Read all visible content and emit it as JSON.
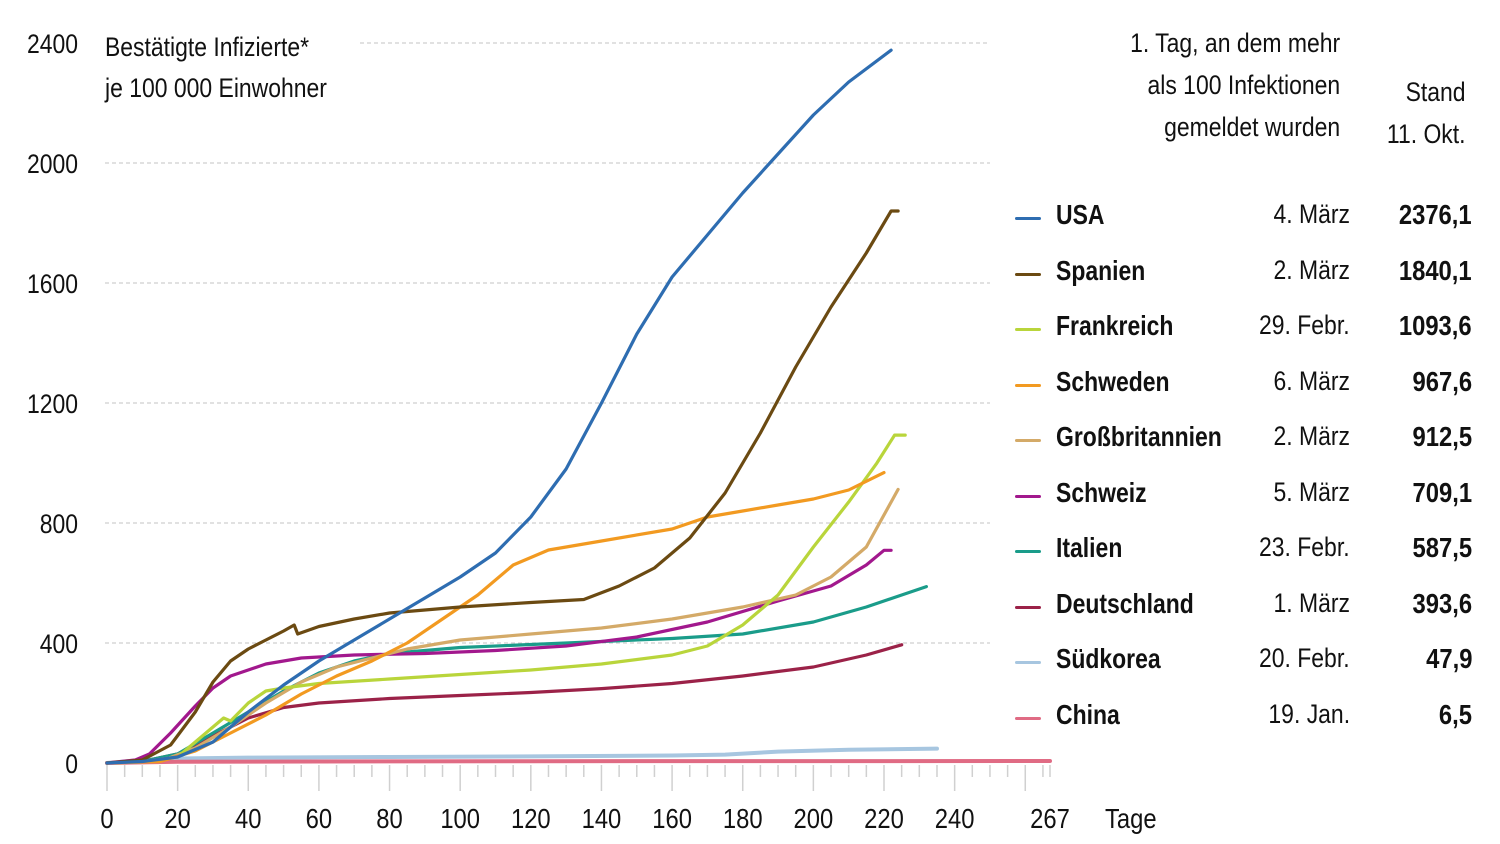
{
  "chart_data": {
    "type": "line",
    "title": "Bestätigte Infizierte* je 100 000 Einwohner",
    "title_lines": [
      "Bestätigte Infizierte*",
      "je 100 000 Einwohner"
    ],
    "xlabel": "Tage",
    "ylabel": "",
    "xlim": [
      0,
      267
    ],
    "ylim": [
      0,
      2400
    ],
    "x_ticks": [
      0,
      20,
      40,
      60,
      80,
      100,
      120,
      140,
      160,
      180,
      200,
      220,
      240,
      267
    ],
    "y_ticks": [
      0,
      400,
      800,
      1200,
      1600,
      2000,
      2400
    ],
    "grid": "horizontal dashed",
    "legend_header": {
      "first_day": [
        "1. Tag, an dem mehr",
        "als 100 Infektionen",
        "gemeldet wurden"
      ],
      "stand": [
        "Stand",
        "11. Okt."
      ]
    },
    "series": [
      {
        "name": "USA",
        "color": "#2e6db1",
        "first_day": "4. März",
        "stand": "2376,1",
        "points": [
          [
            0,
            0
          ],
          [
            10,
            5
          ],
          [
            20,
            20
          ],
          [
            30,
            70
          ],
          [
            40,
            170
          ],
          [
            50,
            260
          ],
          [
            60,
            340
          ],
          [
            70,
            410
          ],
          [
            80,
            480
          ],
          [
            90,
            550
          ],
          [
            100,
            620
          ],
          [
            110,
            700
          ],
          [
            120,
            820
          ],
          [
            130,
            980
          ],
          [
            140,
            1200
          ],
          [
            150,
            1430
          ],
          [
            160,
            1620
          ],
          [
            170,
            1760
          ],
          [
            180,
            1900
          ],
          [
            190,
            2030
          ],
          [
            200,
            2160
          ],
          [
            210,
            2270
          ],
          [
            222,
            2376
          ]
        ]
      },
      {
        "name": "Spanien",
        "color": "#6b4a12",
        "first_day": "2. März",
        "stand": "1840,1",
        "points": [
          [
            0,
            0
          ],
          [
            10,
            10
          ],
          [
            18,
            60
          ],
          [
            25,
            170
          ],
          [
            30,
            270
          ],
          [
            35,
            340
          ],
          [
            40,
            380
          ],
          [
            45,
            410
          ],
          [
            50,
            440
          ],
          [
            53,
            460
          ],
          [
            54,
            430
          ],
          [
            60,
            455
          ],
          [
            70,
            480
          ],
          [
            80,
            500
          ],
          [
            100,
            520
          ],
          [
            120,
            535
          ],
          [
            135,
            545
          ],
          [
            145,
            590
          ],
          [
            155,
            650
          ],
          [
            165,
            750
          ],
          [
            175,
            900
          ],
          [
            185,
            1100
          ],
          [
            195,
            1320
          ],
          [
            205,
            1520
          ],
          [
            215,
            1700
          ],
          [
            222,
            1840
          ],
          [
            224,
            1840
          ]
        ]
      },
      {
        "name": "Frankreich",
        "color": "#b9d53b",
        "first_day": "29. Febr.",
        "stand": "1093,6",
        "points": [
          [
            0,
            0
          ],
          [
            10,
            5
          ],
          [
            20,
            20
          ],
          [
            28,
            100
          ],
          [
            33,
            150
          ],
          [
            35,
            140
          ],
          [
            40,
            200
          ],
          [
            45,
            240
          ],
          [
            50,
            250
          ],
          [
            60,
            265
          ],
          [
            80,
            280
          ],
          [
            100,
            295
          ],
          [
            120,
            310
          ],
          [
            140,
            330
          ],
          [
            160,
            360
          ],
          [
            170,
            390
          ],
          [
            180,
            460
          ],
          [
            190,
            560
          ],
          [
            200,
            720
          ],
          [
            210,
            870
          ],
          [
            218,
            1000
          ],
          [
            223,
            1093
          ],
          [
            226,
            1093
          ]
        ]
      },
      {
        "name": "Schweden",
        "color": "#f29a21",
        "first_day": "6. März",
        "stand": "967,6",
        "points": [
          [
            0,
            0
          ],
          [
            15,
            5
          ],
          [
            25,
            40
          ],
          [
            35,
            100
          ],
          [
            45,
            160
          ],
          [
            55,
            230
          ],
          [
            65,
            290
          ],
          [
            75,
            340
          ],
          [
            85,
            400
          ],
          [
            95,
            480
          ],
          [
            105,
            560
          ],
          [
            115,
            660
          ],
          [
            125,
            710
          ],
          [
            140,
            740
          ],
          [
            160,
            780
          ],
          [
            170,
            820
          ],
          [
            180,
            840
          ],
          [
            190,
            860
          ],
          [
            200,
            880
          ],
          [
            210,
            910
          ],
          [
            220,
            968
          ]
        ]
      },
      {
        "name": "Großbritannien",
        "color": "#d4aa68",
        "first_day": "2. März",
        "stand": "912,5",
        "points": [
          [
            0,
            0
          ],
          [
            15,
            5
          ],
          [
            25,
            50
          ],
          [
            35,
            120
          ],
          [
            45,
            200
          ],
          [
            55,
            270
          ],
          [
            65,
            320
          ],
          [
            75,
            350
          ],
          [
            85,
            380
          ],
          [
            100,
            410
          ],
          [
            120,
            430
          ],
          [
            140,
            450
          ],
          [
            160,
            480
          ],
          [
            180,
            520
          ],
          [
            195,
            560
          ],
          [
            205,
            620
          ],
          [
            215,
            720
          ],
          [
            224,
            912
          ]
        ]
      },
      {
        "name": "Schweiz",
        "color": "#a2188d",
        "first_day": "5. März",
        "stand": "709,1",
        "points": [
          [
            0,
            0
          ],
          [
            8,
            10
          ],
          [
            12,
            30
          ],
          [
            18,
            100
          ],
          [
            25,
            190
          ],
          [
            30,
            250
          ],
          [
            35,
            290
          ],
          [
            45,
            330
          ],
          [
            55,
            350
          ],
          [
            70,
            360
          ],
          [
            90,
            365
          ],
          [
            110,
            375
          ],
          [
            130,
            390
          ],
          [
            150,
            420
          ],
          [
            170,
            470
          ],
          [
            190,
            540
          ],
          [
            205,
            590
          ],
          [
            215,
            660
          ],
          [
            220,
            709
          ],
          [
            222,
            709
          ]
        ]
      },
      {
        "name": "Italien",
        "color": "#1a9c8a",
        "first_day": "23. Febr.",
        "stand": "587,5",
        "points": [
          [
            0,
            0
          ],
          [
            10,
            5
          ],
          [
            20,
            30
          ],
          [
            30,
            100
          ],
          [
            40,
            170
          ],
          [
            50,
            240
          ],
          [
            60,
            300
          ],
          [
            70,
            340
          ],
          [
            80,
            365
          ],
          [
            100,
            385
          ],
          [
            120,
            395
          ],
          [
            140,
            405
          ],
          [
            160,
            415
          ],
          [
            180,
            430
          ],
          [
            200,
            470
          ],
          [
            215,
            520
          ],
          [
            225,
            560
          ],
          [
            232,
            588
          ]
        ]
      },
      {
        "name": "Deutschland",
        "color": "#9b2248",
        "first_day": "1. März",
        "stand": "393,6",
        "points": [
          [
            0,
            0
          ],
          [
            10,
            5
          ],
          [
            20,
            30
          ],
          [
            30,
            90
          ],
          [
            40,
            150
          ],
          [
            50,
            185
          ],
          [
            60,
            200
          ],
          [
            80,
            215
          ],
          [
            100,
            225
          ],
          [
            120,
            235
          ],
          [
            140,
            248
          ],
          [
            160,
            265
          ],
          [
            180,
            290
          ],
          [
            200,
            320
          ],
          [
            215,
            360
          ],
          [
            225,
            394
          ]
        ]
      },
      {
        "name": "Südkorea",
        "color": "#a7c6e0",
        "first_day": "20. Febr.",
        "stand": "47,9",
        "points": [
          [
            0,
            0
          ],
          [
            10,
            10
          ],
          [
            20,
            15
          ],
          [
            40,
            18
          ],
          [
            80,
            20
          ],
          [
            120,
            22
          ],
          [
            160,
            25
          ],
          [
            175,
            28
          ],
          [
            190,
            38
          ],
          [
            210,
            44
          ],
          [
            235,
            48
          ]
        ]
      },
      {
        "name": "China",
        "color": "#e06b84",
        "first_day": "19. Jan.",
        "stand": "6,5",
        "points": [
          [
            0,
            0
          ],
          [
            20,
            4
          ],
          [
            60,
            5
          ],
          [
            120,
            6
          ],
          [
            200,
            6.3
          ],
          [
            267,
            6.5
          ]
        ]
      }
    ]
  }
}
